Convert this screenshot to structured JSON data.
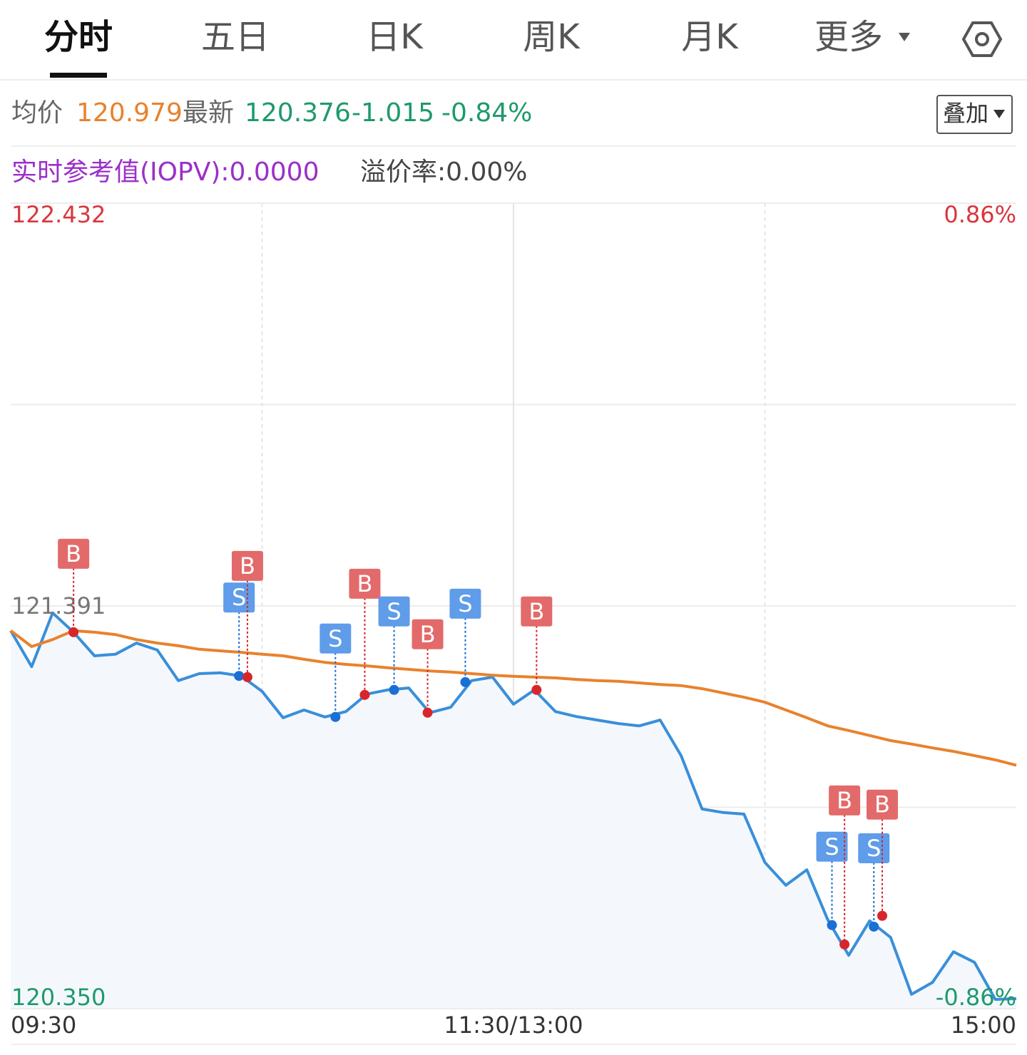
{
  "tabs": [
    "分时",
    "五日",
    "日K",
    "周K",
    "月K",
    "更多"
  ],
  "quote": {
    "avg_label": "均价",
    "avg": "120.979",
    "last_label": "最新",
    "last": "120.376",
    "change": "-1.015",
    "change_pct": "-0.84%",
    "overlay_button": "叠加"
  },
  "iopv": {
    "label": "实时参考值(IOPV):0.0000",
    "premium": "溢价率:0.00%"
  },
  "chart_data": {
    "type": "line",
    "xlim": [
      0,
      48
    ],
    "xticks": [
      {
        "value": 0,
        "label": "09:30"
      },
      {
        "value": 24,
        "label": "11:30/13:00"
      },
      {
        "value": 48,
        "label": "15:00"
      }
    ],
    "ylim": [
      120.35,
      122.432
    ],
    "yticks": [
      {
        "value": 122.432,
        "label": "122.432",
        "color": "#d9363e"
      },
      {
        "value": 121.391,
        "label": "121.391",
        "color": "#777777"
      },
      {
        "value": 120.35,
        "label": "120.350",
        "color": "#1e9a6a"
      }
    ],
    "y2lim": [
      -0.86,
      0.86
    ],
    "y2ticks": [
      {
        "value": 0.86,
        "label": "0.86%",
        "color": "#d9363e"
      },
      {
        "value": -0.86,
        "label": "-0.86%",
        "color": "#1e9a6a"
      }
    ],
    "series": [
      {
        "color": "#3a8fd9",
        "fill": "#f4f8fd",
        "values": [
          121.327,
          121.234,
          121.373,
          121.323,
          121.262,
          121.266,
          121.295,
          121.277,
          121.198,
          121.216,
          121.218,
          121.21,
          121.17,
          121.102,
          121.122,
          121.104,
          121.118,
          121.163,
          121.174,
          121.179,
          121.115,
          121.129,
          121.198,
          121.207,
          121.137,
          121.174,
          121.118,
          121.105,
          121.096,
          121.087,
          121.081,
          121.096,
          121.004,
          120.866,
          120.857,
          120.853,
          120.728,
          120.669,
          120.709,
          120.58,
          120.488,
          120.577,
          120.534,
          120.387,
          120.418,
          120.497,
          120.47,
          120.374,
          120.376
        ]
      },
      {
        "color": "#e8822d",
        "values": [
          121.327,
          121.286,
          121.304,
          121.327,
          121.323,
          121.317,
          121.304,
          121.295,
          121.288,
          121.279,
          121.275,
          121.271,
          121.266,
          121.262,
          121.253,
          121.245,
          121.24,
          121.236,
          121.231,
          121.227,
          121.223,
          121.22,
          121.216,
          121.212,
          121.209,
          121.207,
          121.205,
          121.201,
          121.198,
          121.196,
          121.192,
          121.188,
          121.185,
          121.177,
          121.166,
          121.155,
          121.142,
          121.122,
          121.102,
          121.081,
          121.069,
          121.056,
          121.043,
          121.034,
          121.024,
          121.015,
          121.004,
          120.993,
          120.979
        ]
      }
    ],
    "markers": [
      {
        "label": "B",
        "x": 3.0,
        "value": 121.323
      },
      {
        "label": "S",
        "x": 10.9,
        "value": 121.21
      },
      {
        "label": "B",
        "x": 11.3,
        "value": 121.207
      },
      {
        "label": "S",
        "x": 15.5,
        "value": 121.104
      },
      {
        "label": "B",
        "x": 16.9,
        "value": 121.161
      },
      {
        "label": "S",
        "x": 18.3,
        "value": 121.174
      },
      {
        "label": "B",
        "x": 19.9,
        "value": 121.115
      },
      {
        "label": "S",
        "x": 21.7,
        "value": 121.194
      },
      {
        "label": "B",
        "x": 25.1,
        "value": 121.174
      },
      {
        "label": "S",
        "x": 39.2,
        "value": 120.566
      },
      {
        "label": "B",
        "x": 39.8,
        "value": 120.516
      },
      {
        "label": "S",
        "x": 41.2,
        "value": 120.562
      },
      {
        "label": "B",
        "x": 41.6,
        "value": 120.59
      }
    ],
    "marker_colors": {
      "B": "#e36a6a",
      "S": "#5f9ce9"
    },
    "marker_dot_colors": {
      "B": "#d7262b",
      "S": "#1a6fd6"
    }
  }
}
